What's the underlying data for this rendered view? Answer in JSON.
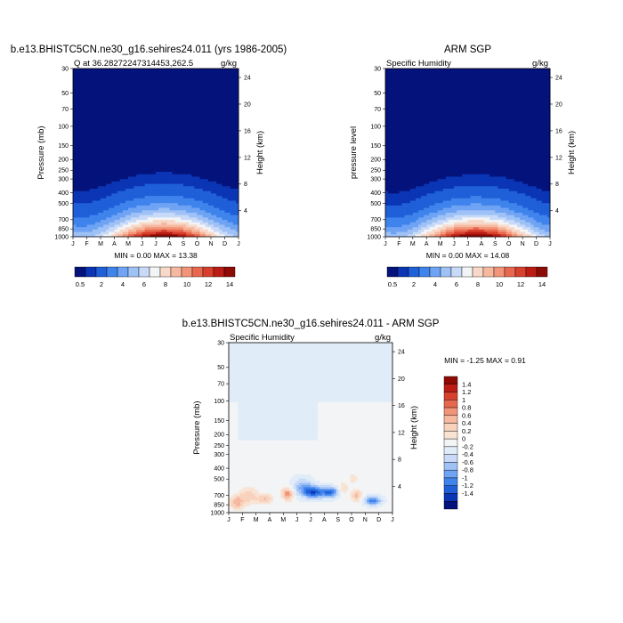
{
  "colors": {
    "model_scale": [
      "#04127c",
      "#0a35b4",
      "#1f5fd8",
      "#3f83ec",
      "#6fa3f3",
      "#9ec1f6",
      "#c9daf8",
      "#f3f4f6",
      "#f8d8c8",
      "#f6b9a0",
      "#f29478",
      "#e8684f",
      "#d8402e",
      "#bb1d14",
      "#8e0b05"
    ],
    "diff_scale": [
      "#04127c",
      "#0a35b4",
      "#1f5fd8",
      "#3f83ec",
      "#6fa3f3",
      "#9ec1f6",
      "#c9daf8",
      "#e0ecf8",
      "#f3f4f6",
      "#f9e3d3",
      "#f8d2bd",
      "#f6b9a0",
      "#f29478",
      "#e8684f",
      "#d8402e",
      "#bb1d14",
      "#8e0b05"
    ]
  },
  "plots": [
    {
      "title": "b.e13.BHISTC5CN.ne30_g16.sehires24.011 (yrs 1986-2005)",
      "left_label": "Q at 36.28272247314453,262.5",
      "right_label": "g/kg",
      "ylabel": "Pressure (mb)",
      "ylabel_right": "Height (km)",
      "minmax": "MIN =   0.00 MAX =  13.38",
      "legend_ticks": [
        "0.5",
        "2",
        "4",
        "6",
        "8",
        "10",
        "12",
        "14"
      ]
    },
    {
      "title": "ARM SGP",
      "left_label": "Specific Humidity",
      "right_label": "g/kg",
      "ylabel": "pressure level",
      "ylabel_right": "Height (km)",
      "minmax": "MIN =   0.00 MAX =  14.08",
      "legend_ticks": [
        "0.5",
        "2",
        "4",
        "6",
        "8",
        "10",
        "12",
        "14"
      ]
    },
    {
      "title": "b.e13.BHISTC5CN.ne30_g16.sehires24.011 - ARM SGP",
      "left_label": "Specific Humidity",
      "right_label": "g/kg",
      "ylabel": "Pressure (mb)",
      "ylabel_right": "Height (km)",
      "minmax": "MIN =  -1.25 MAX =   0.91",
      "legend_ticks": [
        "1.4",
        "1.2",
        "1",
        "0.8",
        "0.6",
        "0.4",
        "0.2",
        "0",
        "-0.2",
        "-0.4",
        "-0.6",
        "-0.8",
        "-1",
        "-1.2",
        "-1.4"
      ]
    }
  ],
  "chart_data": [
    {
      "type": "heatmap",
      "title": "b.e13.BHISTC5CN.ne30_g16.sehires24.011 (yrs 1986-2005)",
      "subtitle": "Q at 36.28272247314453,262.5",
      "units": "g/kg",
      "xlabel": "",
      "ylabel": "Pressure (mb)",
      "ylabel_right": "Height (km)",
      "x_ticks": [
        "J",
        "F",
        "M",
        "A",
        "M",
        "J",
        "J",
        "A",
        "S",
        "O",
        "N",
        "D",
        "J"
      ],
      "y_ticks_pressure": [
        30,
        50,
        70,
        100,
        150,
        200,
        250,
        300,
        400,
        500,
        700,
        850,
        1000
      ],
      "y_ticks_height_km": [
        24,
        20,
        16,
        12,
        8,
        4
      ],
      "min": 0.0,
      "max": 13.38,
      "levels": [
        0.5,
        1,
        2,
        3,
        4,
        5,
        6,
        7,
        8,
        9,
        10,
        11,
        12,
        13,
        14
      ],
      "field": "Specific humidity, near zero above 400 mb, increasing toward the surface with a summer maximum near 850 mb in July"
    },
    {
      "type": "heatmap",
      "title": "ARM SGP",
      "subtitle": "Specific Humidity",
      "units": "g/kg",
      "xlabel": "",
      "ylabel": "pressure level",
      "ylabel_right": "Height (km)",
      "x_ticks": [
        "J",
        "F",
        "M",
        "A",
        "M",
        "J",
        "J",
        "A",
        "S",
        "O",
        "N",
        "D",
        "J"
      ],
      "y_ticks_pressure": [
        30,
        50,
        70,
        100,
        150,
        200,
        250,
        300,
        400,
        500,
        700,
        850,
        1000
      ],
      "y_ticks_height_km": [
        24,
        20,
        16,
        12,
        8,
        4
      ],
      "min": 0.0,
      "max": 14.08,
      "levels": [
        0.5,
        1,
        2,
        3,
        4,
        5,
        6,
        7,
        8,
        9,
        10,
        11,
        12,
        13,
        14
      ]
    },
    {
      "type": "heatmap",
      "title": "b.e13.BHISTC5CN.ne30_g16.sehires24.011 - ARM SGP",
      "subtitle": "Specific Humidity",
      "units": "g/kg",
      "xlabel": "",
      "ylabel": "Pressure (mb)",
      "ylabel_right": "Height (km)",
      "x_ticks": [
        "J",
        "F",
        "M",
        "A",
        "M",
        "J",
        "J",
        "A",
        "S",
        "O",
        "N",
        "D",
        "J"
      ],
      "y_ticks_pressure": [
        30,
        50,
        70,
        100,
        150,
        200,
        250,
        300,
        400,
        500,
        700,
        850,
        1000
      ],
      "y_ticks_height_km": [
        24,
        20,
        16,
        12,
        8,
        4
      ],
      "min": -1.25,
      "max": 0.91,
      "levels": [
        -1.4,
        -1.2,
        -1,
        -0.8,
        -0.6,
        -0.4,
        -0.2,
        0,
        0.2,
        0.4,
        0.6,
        0.8,
        1,
        1.2,
        1.4
      ]
    }
  ]
}
